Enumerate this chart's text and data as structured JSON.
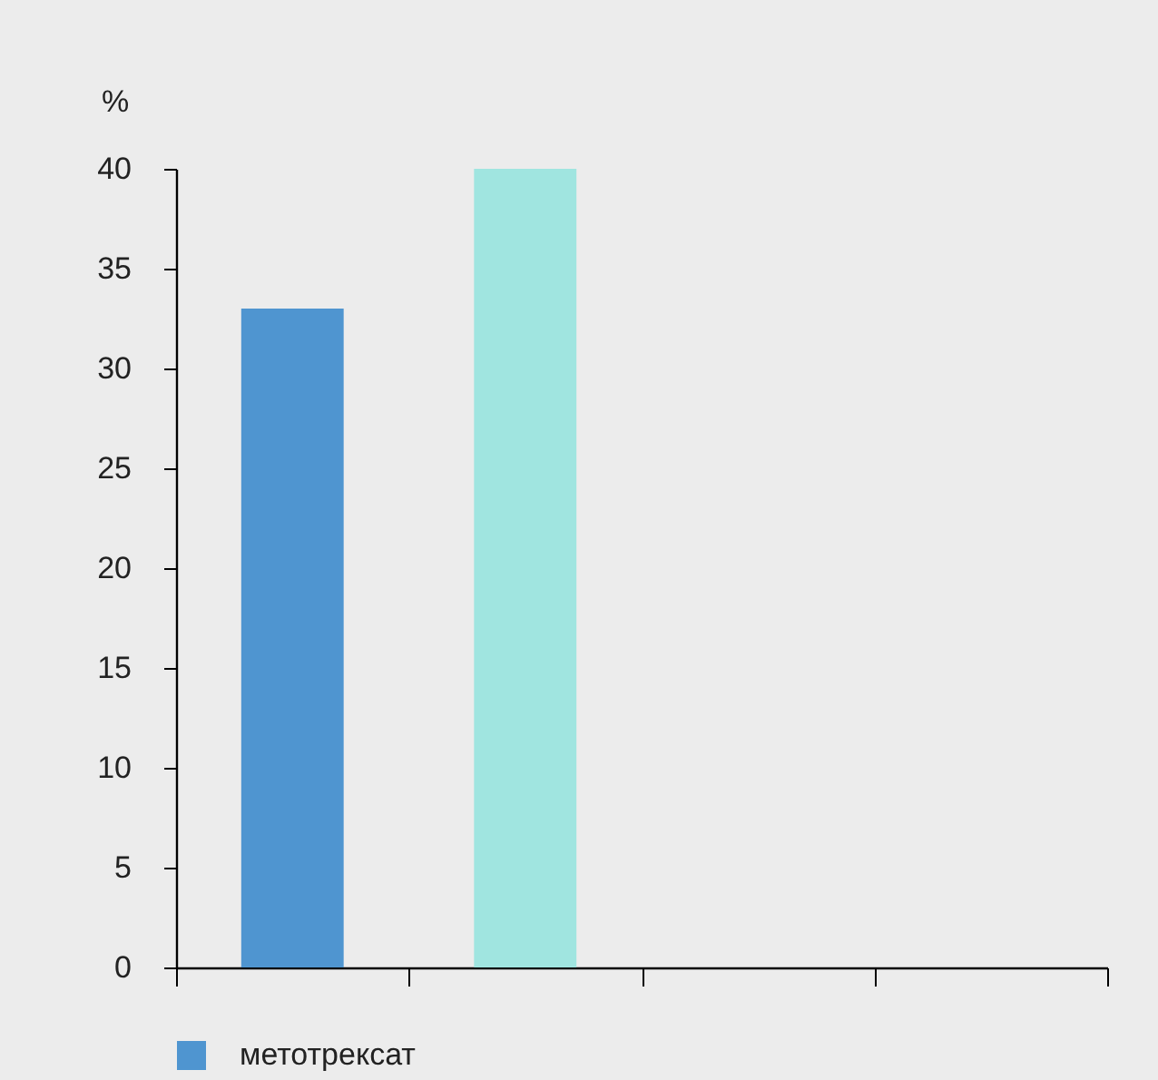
{
  "chart_data": {
    "type": "bar",
    "ylabel": "%",
    "categories": [
      null,
      null,
      null,
      null
    ],
    "series": [
      {
        "name": "метотрексат",
        "color": "#4f95d0",
        "values": [
          33,
          null,
          null,
          null
        ]
      },
      {
        "color": "#a0e5e0",
        "values": [
          null,
          40,
          null,
          null
        ]
      }
    ],
    "ylim": [
      0,
      40
    ],
    "yticks": [
      0,
      5,
      10,
      15,
      20,
      25,
      30,
      35,
      40
    ],
    "legend": "bottom"
  }
}
